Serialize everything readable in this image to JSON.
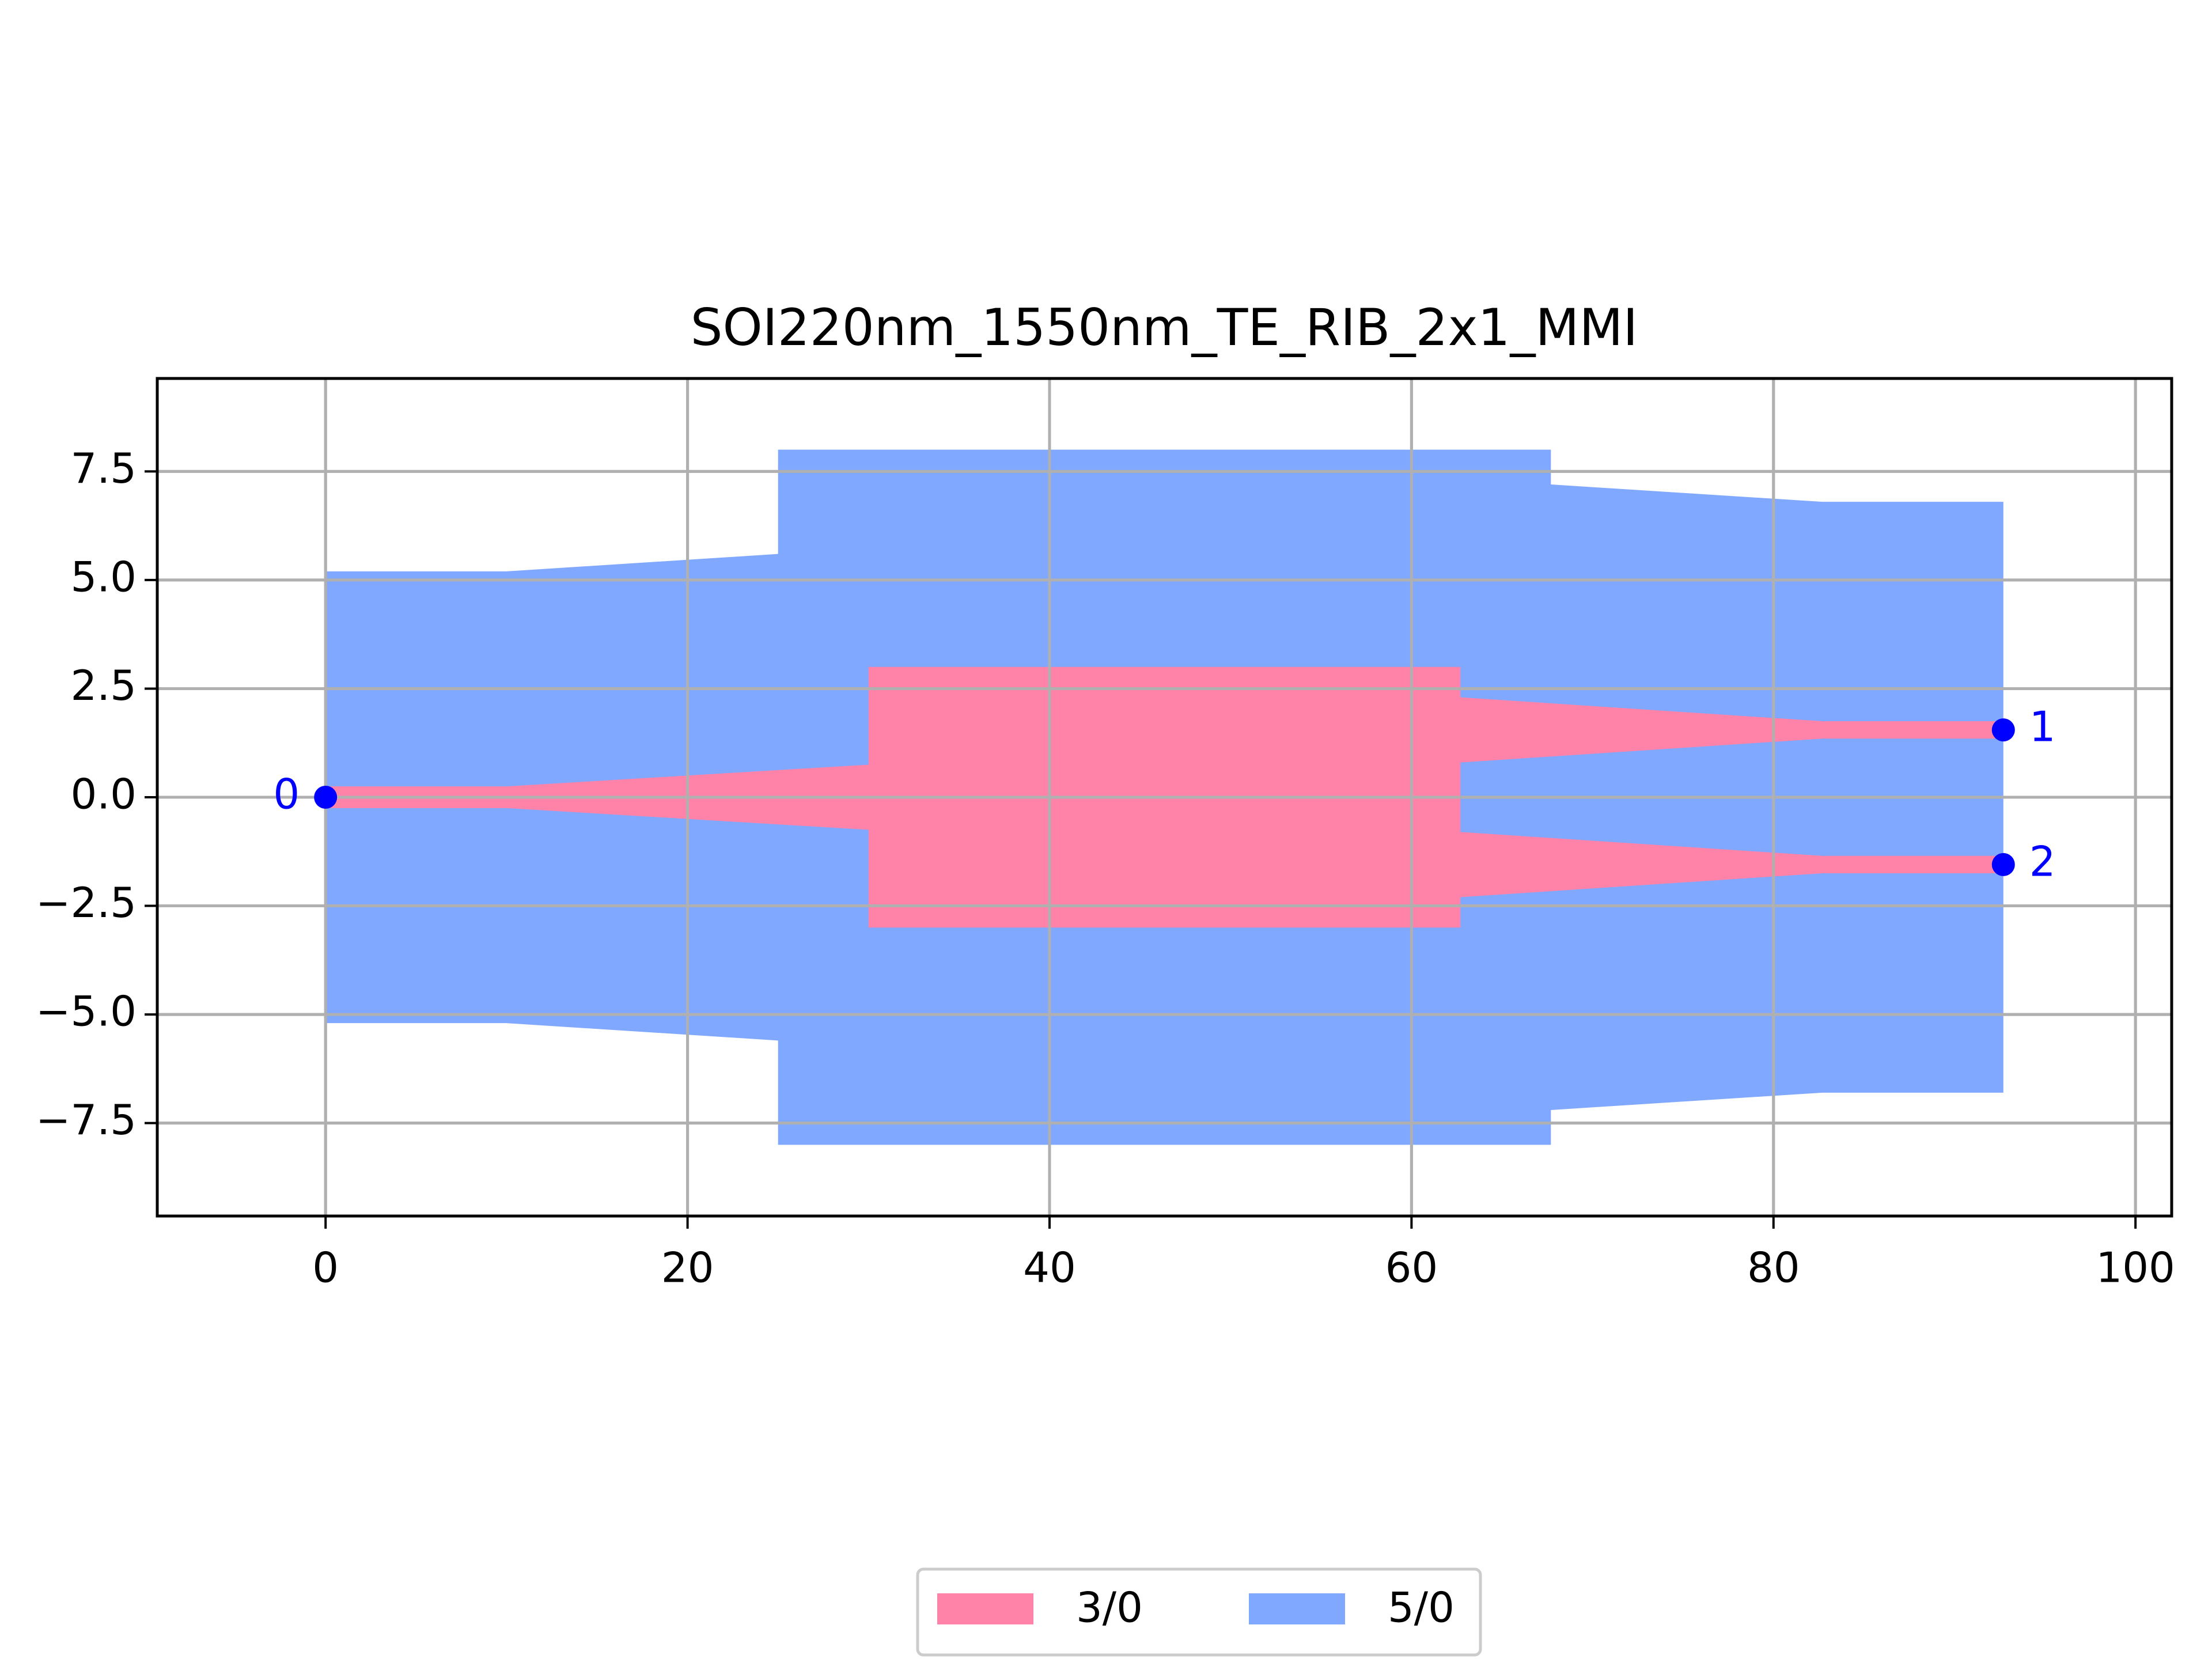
{
  "chart_data": {
    "type": "polygon",
    "title": "SOI220nm_1550nm_TE_RIB_2x1_MMI",
    "xlim": [
      -9.3,
      102
    ],
    "ylim": [
      -9.64,
      9.64
    ],
    "xticks": [
      0,
      20,
      40,
      60,
      80,
      100
    ],
    "yticks": [
      {
        "value": -7.5,
        "label": "−7.5"
      },
      {
        "value": -5,
        "label": "−5.0"
      },
      {
        "value": -2.5,
        "label": "−2.5"
      },
      {
        "value": 0,
        "label": "0.0"
      },
      2.5,
      {
        "value": 5,
        "label": "5.0"
      },
      7.5
    ],
    "grid": true,
    "legend": "lower center",
    "series": [
      {
        "name": "3/0",
        "color": "#ff82a8",
        "x": [
          0,
          10,
          30,
          30,
          62.7,
          62.7,
          82.7,
          92.7,
          92.7,
          82.7,
          62.7,
          62.7,
          82.7,
          92.7,
          92.7,
          82.7,
          62.7,
          62.7,
          30,
          30,
          10,
          0
        ],
        "y": [
          0.25,
          0.25,
          0.75,
          3,
          3,
          2.3,
          1.75,
          1.75,
          1.35,
          1.35,
          0.8,
          -0.8,
          -1.35,
          -1.35,
          -1.75,
          -1.75,
          -2.3,
          -3,
          -3,
          -0.75,
          -0.25,
          -0.25
        ]
      },
      {
        "name": "5/0",
        "color": "#80a8ff",
        "x": [
          0,
          10,
          25,
          25,
          67.7,
          67.7,
          82.7,
          92.7,
          92.7,
          82.7,
          67.7,
          67.7,
          25,
          25,
          10,
          0
        ],
        "y": [
          5.2,
          5.2,
          5.6,
          8,
          8,
          7.2,
          6.8,
          6.8,
          -6.8,
          -6.8,
          -7.2,
          -8,
          -8,
          -5.6,
          -5.2,
          -5.2
        ]
      }
    ],
    "ports": {
      "color": "#0000ff",
      "labels": [
        "0",
        "1",
        "2"
      ],
      "x": [
        0,
        92.7,
        92.7
      ],
      "y": [
        0,
        1.55,
        -1.55
      ]
    }
  }
}
